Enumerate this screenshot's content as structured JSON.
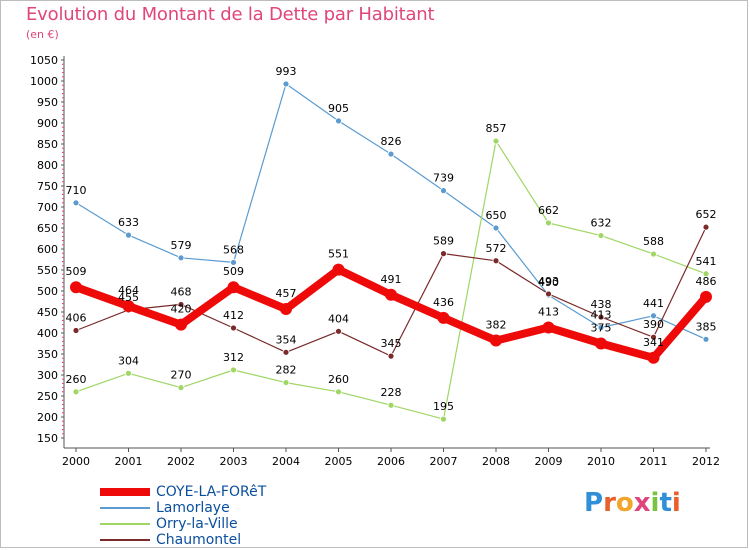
{
  "title": "Evolution du Montant de la Dette par Habitant",
  "subtitle": "(en €)",
  "logo": {
    "letters": [
      {
        "ch": "P",
        "color": "#2f8fd8"
      },
      {
        "ch": "r",
        "color": "#e8612c"
      },
      {
        "ch": "o",
        "color": "#f2a52b"
      },
      {
        "ch": "x",
        "color": "#e0457b"
      },
      {
        "ch": "i",
        "color": "#7cc242"
      },
      {
        "ch": "t",
        "color": "#2f8fd8"
      },
      {
        "ch": "i",
        "color": "#e8612c"
      }
    ]
  },
  "chart_data": {
    "type": "line",
    "title": "Evolution du Montant de la Dette par Habitant",
    "subtitle": "(en €)",
    "x": [
      "2000",
      "2001",
      "2002",
      "2003",
      "2004",
      "2005",
      "2006",
      "2007",
      "2008",
      "2009",
      "2010",
      "2011",
      "2012"
    ],
    "ylim": [
      150,
      1050
    ],
    "yticks": [
      150,
      200,
      250,
      300,
      350,
      400,
      450,
      500,
      550,
      600,
      650,
      700,
      750,
      800,
      850,
      900,
      950,
      1000,
      1050
    ],
    "grid": false,
    "legend_position": "bottom-left",
    "series": [
      {
        "name": "COYE-LA-FORêT",
        "color": "#ef0a0a",
        "emphasis": true,
        "values": [
          509,
          464,
          420,
          509,
          457,
          551,
          491,
          436,
          382,
          413,
          375,
          341,
          486
        ]
      },
      {
        "name": "Lamorlaye",
        "color": "#5b9bd0",
        "values": [
          710,
          633,
          579,
          568,
          993,
          905,
          826,
          739,
          650,
          490,
          413,
          441,
          385
        ]
      },
      {
        "name": "Orry-la-Ville",
        "color": "#9fd664",
        "values": [
          260,
          304,
          270,
          312,
          282,
          260,
          228,
          195,
          857,
          662,
          632,
          588,
          541
        ]
      },
      {
        "name": "Chaumontel",
        "color": "#7a2a2a",
        "values": [
          406,
          455,
          468,
          412,
          354,
          404,
          345,
          589,
          572,
          493,
          438,
          390,
          652
        ]
      }
    ]
  }
}
